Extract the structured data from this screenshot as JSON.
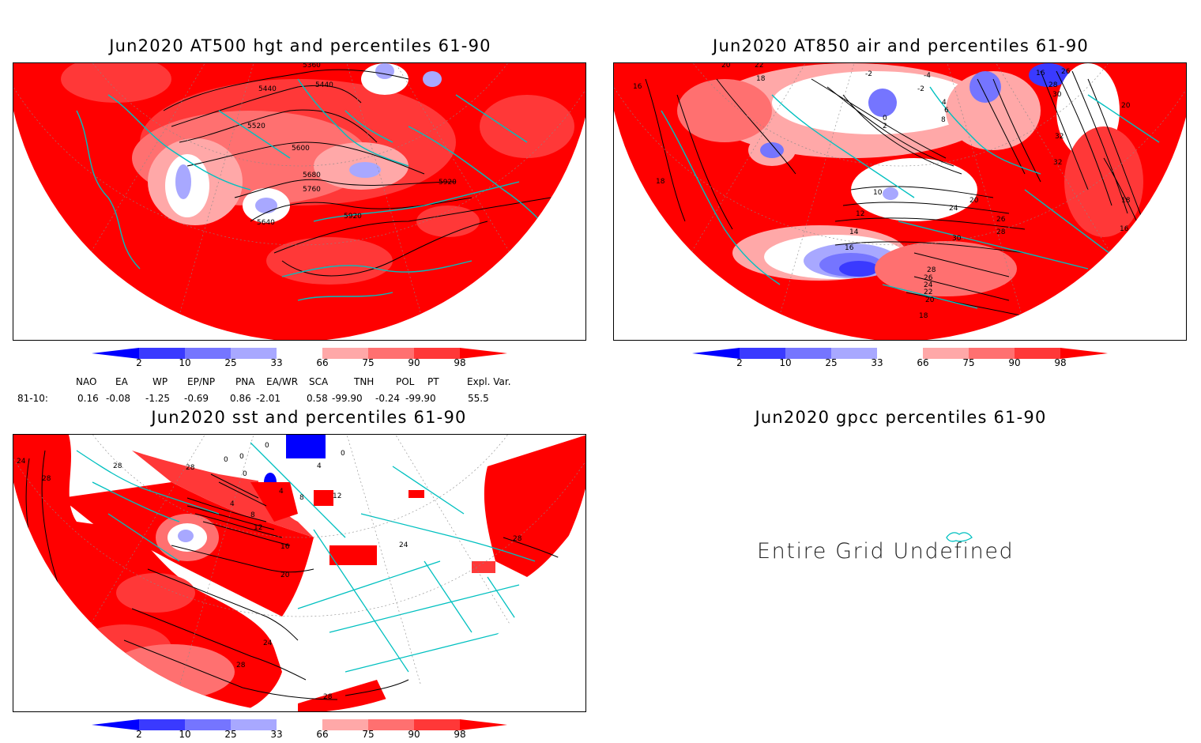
{
  "panels": {
    "hgt": {
      "title": "Jun2020 AT500 hgt and percentiles 61-90",
      "contour_labels": [
        "5360",
        "5440",
        "5440",
        "5520",
        "5600",
        "5680",
        "5760",
        "5640",
        "5920",
        "5920"
      ]
    },
    "air": {
      "title": "Jun2020 AT850 air and percentiles 61-90",
      "contour_labels": [
        "16",
        "20",
        "22",
        "18",
        "-2",
        "-4",
        "-2",
        "16",
        "26",
        "28",
        "30",
        "20",
        "4",
        "6",
        "8",
        "0",
        "2",
        "32",
        "32",
        "10",
        "12",
        "14",
        "16",
        "18",
        "20",
        "24",
        "26",
        "28",
        "30",
        "28",
        "26",
        "24",
        "22",
        "20",
        "18",
        "18",
        "16"
      ]
    },
    "sst": {
      "title": "Jun2020 sst and percentiles 61-90",
      "contour_labels": [
        "24",
        "28",
        "28",
        "28",
        "0",
        "0",
        "0",
        "0",
        "0",
        "4",
        "4",
        "8",
        "12",
        "4",
        "8",
        "12",
        "16",
        "20",
        "24",
        "24",
        "28",
        "28",
        "28"
      ]
    },
    "gpcc": {
      "title": "Jun2020 gpcc percentiles 61-90",
      "message": "Entire Grid Undefined"
    }
  },
  "colorbar": {
    "labels": [
      "2",
      "10",
      "25",
      "33",
      "66",
      "75",
      "90",
      "98"
    ],
    "colors": [
      "#0000ff",
      "#3a3aff",
      "#7575ff",
      "#a8a8ff",
      "#ffffff",
      "#ffa8a8",
      "#ff7070",
      "#ff3838",
      "#ff0000"
    ]
  },
  "indices": {
    "headers": [
      "NAO",
      "EA",
      "WP",
      "EP/NP",
      "PNA",
      "EA/WR",
      "SCA",
      "TNH",
      "POL",
      "PT",
      "Expl. Var."
    ],
    "period": "81-10:",
    "values": [
      "0.16",
      "-0.08",
      "-1.25",
      "-0.69",
      "0.86",
      "-2.01",
      "0.58",
      "-99.90",
      "-0.24",
      "-99.90",
      "55.5"
    ]
  },
  "colors": {
    "land_outline": "#00c0c0",
    "high_fill": "#ff0000",
    "low_fill": "#0000ff",
    "contour": "#000000"
  }
}
